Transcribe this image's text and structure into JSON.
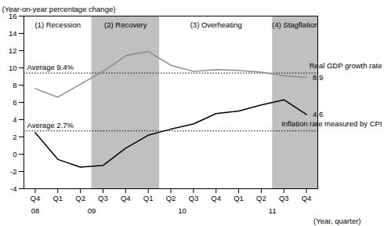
{
  "chart_data": {
    "type": "line",
    "y_label": "(Year-on-year percentage change)",
    "x_label": "(Year, quarter)",
    "categories": [
      "Q4",
      "Q1",
      "Q2",
      "Q3",
      "Q4",
      "Q1",
      "Q2",
      "Q3",
      "Q4",
      "Q1",
      "Q2",
      "Q3",
      "Q4"
    ],
    "years": [
      "08",
      "09",
      "09",
      "09",
      "09",
      "10",
      "10",
      "10",
      "10",
      "11",
      "11",
      "11",
      "11"
    ],
    "periods": [
      {
        "label": "(1) Recession",
        "quarters": 3
      },
      {
        "label": "(2) Recovery",
        "quarters": 3,
        "color": "#c0c0c0"
      },
      {
        "label": "(3) Overheating",
        "quarters": 5
      },
      {
        "label": "(4) Stagflation",
        "quarters": 2,
        "color": "#c0c0c0"
      }
    ],
    "series": [
      {
        "name": "Real GDP growth rate",
        "color": "#8c8c8c",
        "values": [
          7.6,
          6.6,
          8.1,
          9.6,
          11.4,
          11.9,
          10.3,
          9.6,
          9.8,
          9.7,
          9.5,
          9.1,
          8.9
        ],
        "average": 9.4,
        "average_label": "Average 9.4%"
      },
      {
        "name": "Inflation rate measured by CPI",
        "color": "#000000",
        "values": [
          2.5,
          -0.6,
          -1.5,
          -1.3,
          0.7,
          2.2,
          2.9,
          3.5,
          4.7,
          5.0,
          5.7,
          6.3,
          4.6
        ],
        "average": 2.7,
        "average_label": "Average 2.7%"
      }
    ],
    "ylim": [
      -4,
      16
    ],
    "yticks": [
      -4,
      -2,
      0,
      2,
      4,
      6,
      8,
      10,
      12,
      14,
      16
    ],
    "grid": false
  }
}
